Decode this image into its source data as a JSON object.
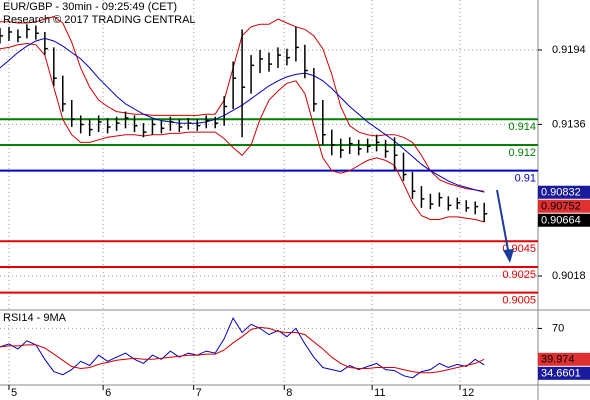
{
  "chart_data": [
    {
      "type": "ohlc",
      "title": "EUR/GBP - 30min - 09:25:49 (CET)",
      "subtitle": "Research © 2017 TRADING CENTRAL",
      "xlim": [
        0,
        60
      ],
      "ylim": [
        0.89915,
        0.92329
      ],
      "yticks": [
        0.9194,
        0.9136,
        0.9018
      ],
      "grid": true,
      "color": "#000000",
      "high": [
        0.9211,
        0.9212,
        0.921,
        0.9214,
        0.9213,
        0.9208,
        0.9196,
        0.9174,
        0.9155,
        0.9143,
        0.914,
        0.9143,
        0.9141,
        0.9142,
        0.9146,
        0.9143,
        0.9137,
        0.914,
        0.9139,
        0.9142,
        0.914,
        0.9141,
        0.914,
        0.9143,
        0.9142,
        0.9158,
        0.9185,
        0.921,
        0.919,
        0.9194,
        0.9192,
        0.9196,
        0.9195,
        0.9212,
        0.9198,
        0.918,
        0.9155,
        0.9132,
        0.9125,
        0.9126,
        0.9124,
        0.9125,
        0.9128,
        0.9124,
        0.9126,
        0.9114,
        0.9099,
        0.9088,
        0.9082,
        0.9083,
        0.908,
        0.9079,
        0.9077,
        0.9076,
        0.9075
      ],
      "low": [
        0.9199,
        0.9201,
        0.92,
        0.9203,
        0.9202,
        0.919,
        0.9166,
        0.9146,
        0.9134,
        0.9129,
        0.9127,
        0.913,
        0.9129,
        0.9131,
        0.9133,
        0.913,
        0.9126,
        0.9128,
        0.9129,
        0.9131,
        0.913,
        0.9132,
        0.9131,
        0.9133,
        0.9133,
        0.9135,
        0.9148,
        0.9126,
        0.916,
        0.9176,
        0.9177,
        0.918,
        0.9182,
        0.9185,
        0.9172,
        0.9146,
        0.912,
        0.9112,
        0.911,
        0.9113,
        0.9112,
        0.9114,
        0.9115,
        0.911,
        0.91,
        0.9092,
        0.9078,
        0.9071,
        0.907,
        0.9072,
        0.9069,
        0.907,
        0.9068,
        0.9066,
        0.906
      ],
      "close": [
        0.9205,
        0.9208,
        0.9204,
        0.921,
        0.9207,
        0.9195,
        0.9172,
        0.9152,
        0.914,
        0.9136,
        0.9132,
        0.9138,
        0.9134,
        0.9137,
        0.9141,
        0.9135,
        0.913,
        0.9136,
        0.9133,
        0.9138,
        0.9134,
        0.9137,
        0.9135,
        0.9139,
        0.9137,
        0.915,
        0.9172,
        0.9165,
        0.9182,
        0.9187,
        0.9183,
        0.919,
        0.9188,
        0.9196,
        0.9178,
        0.9152,
        0.9128,
        0.912,
        0.9116,
        0.9121,
        0.9117,
        0.9119,
        0.9122,
        0.9115,
        0.9112,
        0.9097,
        0.9084,
        0.9078,
        0.9074,
        0.9079,
        0.9073,
        0.9075,
        0.9071,
        0.9072,
        0.90664
      ],
      "bands": {
        "color": "#d00000",
        "upper": [
          0.9216,
          0.9216,
          0.9215,
          0.9215,
          0.9216,
          0.9218,
          0.922,
          0.9215,
          0.92,
          0.918,
          0.9165,
          0.9155,
          0.915,
          0.9146,
          0.9145,
          0.9144,
          0.9144,
          0.9143,
          0.9143,
          0.9143,
          0.9143,
          0.9143,
          0.9143,
          0.9144,
          0.9144,
          0.9155,
          0.918,
          0.9205,
          0.9212,
          0.9214,
          0.9214,
          0.9218,
          0.9215,
          0.9212,
          0.921,
          0.9205,
          0.9195,
          0.9175,
          0.915,
          0.9135,
          0.913,
          0.9128,
          0.9127,
          0.9128,
          0.9128,
          0.9126,
          0.9122,
          0.9112,
          0.91,
          0.9093,
          0.909,
          0.9088,
          0.9086,
          0.9085,
          0.9084
        ],
        "lower": [
          0.9195,
          0.9196,
          0.9198,
          0.9199,
          0.9198,
          0.919,
          0.9165,
          0.914,
          0.9128,
          0.9122,
          0.9122,
          0.9124,
          0.9126,
          0.9127,
          0.9128,
          0.9128,
          0.9127,
          0.9128,
          0.9128,
          0.9129,
          0.9129,
          0.913,
          0.913,
          0.913,
          0.913,
          0.9125,
          0.9118,
          0.9112,
          0.912,
          0.914,
          0.9155,
          0.9162,
          0.9168,
          0.917,
          0.916,
          0.9135,
          0.911,
          0.91,
          0.9098,
          0.91,
          0.9104,
          0.9108,
          0.911,
          0.9108,
          0.9104,
          0.909,
          0.9075,
          0.9065,
          0.9062,
          0.9062,
          0.9064,
          0.9064,
          0.9063,
          0.9062,
          0.906
        ]
      },
      "ma": {
        "color": "#0000c0",
        "values": [
          0.918,
          0.9186,
          0.9192,
          0.9197,
          0.9201,
          0.9203,
          0.9201,
          0.9197,
          0.9192,
          0.9187,
          0.918,
          0.9172,
          0.9165,
          0.9158,
          0.9152,
          0.9148,
          0.9144,
          0.9141,
          0.9139,
          0.9138,
          0.9137,
          0.9137,
          0.9137,
          0.9138,
          0.914,
          0.9143,
          0.9147,
          0.9151,
          0.9156,
          0.9161,
          0.9166,
          0.917,
          0.9173,
          0.9175,
          0.9176,
          0.9174,
          0.917,
          0.9164,
          0.9157,
          0.915,
          0.9144,
          0.9138,
          0.9133,
          0.9128,
          0.9123,
          0.9117,
          0.9111,
          0.9105,
          0.91,
          0.9096,
          0.9092,
          0.9089,
          0.9087,
          0.9085,
          0.90832
        ]
      },
      "levels": [
        {
          "value": 0.914,
          "color": "#008000"
        },
        {
          "value": 0.912,
          "color": "#008000"
        },
        {
          "value": 0.91,
          "color": "#0000c0"
        },
        {
          "value": 0.9045,
          "color": "#e00000"
        },
        {
          "value": 0.9025,
          "color": "#e00000"
        },
        {
          "value": 0.9005,
          "color": "#e00000"
        }
      ],
      "markers": [
        {
          "value": 0.90832,
          "color": "#1a1a9c",
          "text_color": "#ffffff"
        },
        {
          "value": 0.90752,
          "color": "#e03030",
          "text_color": "#000000"
        },
        {
          "value": 0.90664,
          "color": "#000000",
          "text_color": "#ffffff"
        }
      ]
    },
    {
      "type": "line",
      "title": "RSI14 - 9MA",
      "xlim": [
        0,
        60
      ],
      "ylim": [
        15,
        85
      ],
      "yticks": [
        70
      ],
      "xticks": [
        {
          "value": 1,
          "label": "5"
        },
        {
          "value": 11.5,
          "label": "6"
        },
        {
          "value": 21.6,
          "label": "7"
        },
        {
          "value": 31.7,
          "label": "8"
        },
        {
          "value": 41.5,
          "label": "11"
        },
        {
          "value": 51.3,
          "label": "12"
        }
      ],
      "series": [
        {
          "color": "#0000c0",
          "values": [
            52,
            55,
            50,
            58,
            54,
            40,
            28,
            25,
            30,
            38,
            34,
            44,
            38,
            42,
            46,
            40,
            36,
            44,
            40,
            48,
            42,
            46,
            44,
            48,
            46,
            60,
            80,
            66,
            74,
            70,
            64,
            68,
            62,
            70,
            55,
            42,
            32,
            30,
            28,
            34,
            30,
            33,
            36,
            30,
            29,
            24,
            22,
            28,
            30,
            36,
            32,
            35,
            33,
            40,
            34.6601
          ]
        },
        {
          "color": "#d00000",
          "values": [
            52,
            53,
            53,
            54,
            54,
            51,
            45,
            39,
            33,
            31,
            32,
            35,
            37,
            39,
            40,
            41,
            40,
            40,
            41,
            42,
            43,
            44,
            44,
            45,
            45,
            49,
            56,
            62,
            69,
            71,
            70,
            67,
            66,
            66,
            64,
            57,
            50,
            42,
            36,
            32,
            31,
            31,
            32,
            32,
            32,
            30,
            28,
            27,
            27,
            28,
            30,
            32,
            34,
            36,
            39.974
          ]
        }
      ],
      "markers": [
        {
          "value": 39.974,
          "color": "#e03030",
          "text_color": "#000000"
        },
        {
          "value": 34.6601,
          "color": "#1a1a9c",
          "text_color": "#ffffff"
        }
      ]
    }
  ]
}
